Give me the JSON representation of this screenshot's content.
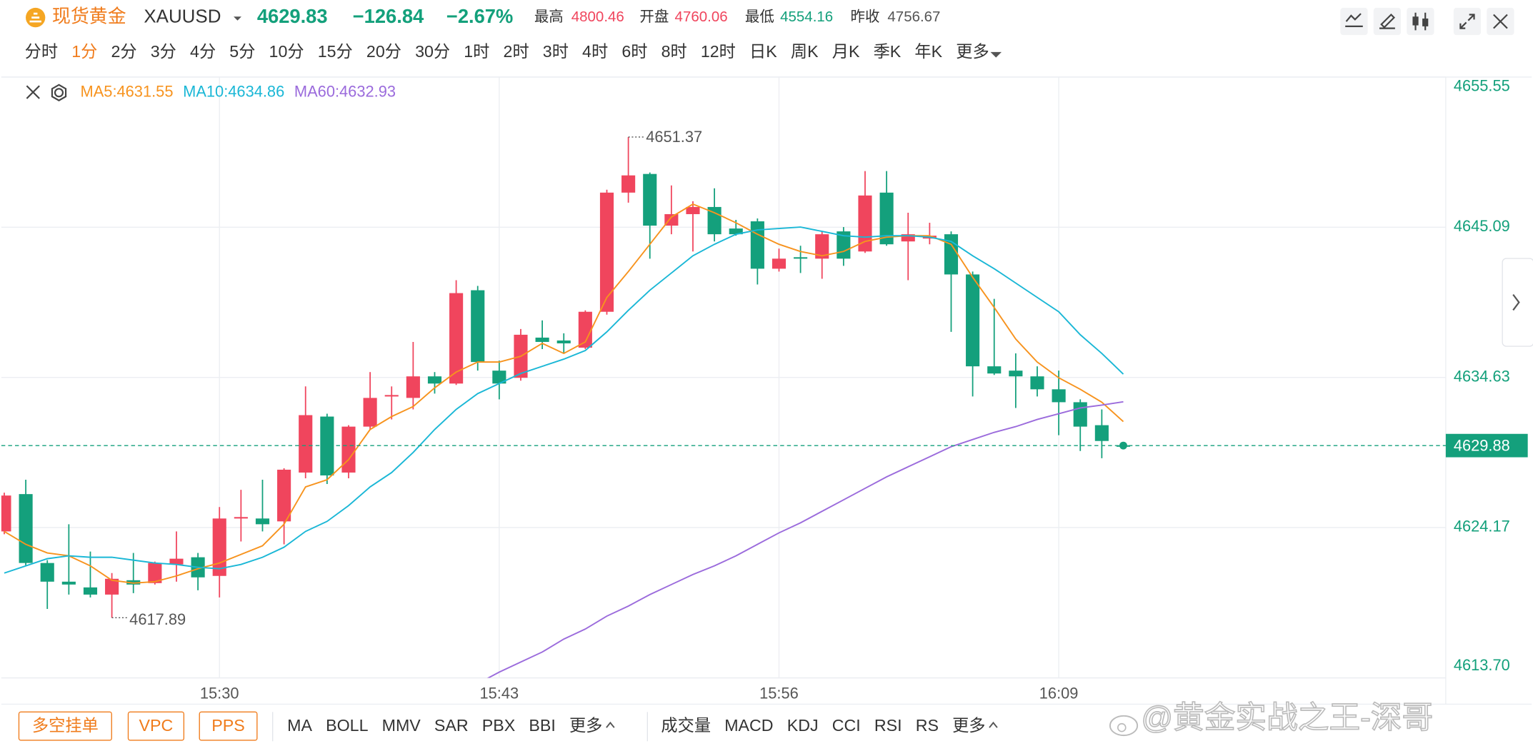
{
  "header": {
    "name": "现货黄金",
    "symbol": "XAUUSD",
    "price": "4629.83",
    "change": "−126.84",
    "change_pct": "−2.67%",
    "stats": [
      {
        "label": "最高",
        "value": "4800.46"
      },
      {
        "label": "开盘",
        "value": "4760.06"
      },
      {
        "label": "最低",
        "value": "4554.16"
      },
      {
        "label": "昨收",
        "value": "4756.67"
      }
    ]
  },
  "periods": [
    "分时",
    "1分",
    "2分",
    "3分",
    "4分",
    "5分",
    "10分",
    "15分",
    "20分",
    "30分",
    "1时",
    "2时",
    "3时",
    "4时",
    "6时",
    "8时",
    "12时",
    "日K",
    "周K",
    "月K",
    "季K",
    "年K",
    "更多"
  ],
  "buttons": [
    "多空挂单",
    "VPC",
    "PPS"
  ],
  "main_indicators": [
    "MA",
    "BOLL",
    "MMV",
    "SAR",
    "PBX",
    "BBI",
    "更多"
  ],
  "sub_indicators": [
    "成交量",
    "MACD",
    "KDJ",
    "CCI",
    "RSI",
    "RS",
    "更多"
  ],
  "watermark": "@黄金实战之王-深哥",
  "chart_data": {
    "type": "candlestick",
    "categories": [
      null,
      null,
      null,
      null,
      null,
      null,
      null,
      null,
      null,
      null,
      "15:30",
      null,
      null,
      null,
      null,
      null,
      null,
      null,
      null,
      null,
      null,
      null,
      null,
      "15:43",
      null,
      null,
      null,
      null,
      null,
      null,
      null,
      null,
      null,
      null,
      null,
      null,
      "15:56",
      null,
      null,
      null,
      null,
      null,
      null,
      null,
      null,
      null,
      null,
      null,
      null,
      "16:09",
      null,
      null,
      null
    ],
    "open": [
      4623.9,
      4626.5,
      4621.7,
      4620.4,
      4620.0,
      4619.5,
      4620.5,
      4620.3,
      4621.6,
      4622.1,
      4620.8,
      4624.8,
      4624.8,
      4624.6,
      4628.0,
      4631.9,
      4628.0,
      4631.2,
      4633.3,
      4633.2,
      4634.7,
      4634.2,
      4640.7,
      4635.1,
      4634.6,
      4637.4,
      4637.2,
      4636.7,
      4639.2,
      4647.5,
      4648.8,
      4645.2,
      4646.0,
      4646.5,
      4645.0,
      4645.5,
      4642.2,
      4643.0,
      4642.9,
      4644.8,
      4643.4,
      4647.5,
      4644.1,
      4644.3,
      4644.6,
      4641.8,
      4635.4,
      4635.1,
      4634.7,
      4633.8,
      4632.9,
      4631.3,
      4629.9
    ],
    "high": [
      4626.6,
      4627.5,
      4621.9,
      4624.4,
      4622.5,
      4621.0,
      4622.4,
      4621.8,
      4623.9,
      4622.4,
      4625.6,
      4626.8,
      4627.5,
      4628.3,
      4634.0,
      4632.1,
      4631.3,
      4635.0,
      4634.0,
      4637.1,
      4635.0,
      4641.4,
      4641.0,
      4635.8,
      4638.0,
      4638.6,
      4637.7,
      4639.3,
      4647.7,
      4651.37,
      4648.9,
      4648.0,
      4646.9,
      4647.8,
      4645.6,
      4645.7,
      4643.6,
      4643.8,
      4644.8,
      4645.1,
      4649.0,
      4649.0,
      4646.1,
      4645.4,
      4644.8,
      4642.0,
      4640.1,
      4636.3,
      4635.4,
      4635.1,
      4633.1,
      4632.4,
      4630.0
    ],
    "low": [
      4623.7,
      4621.5,
      4618.5,
      4619.5,
      4619.3,
      4617.89,
      4619.6,
      4620.2,
      4620.4,
      4619.8,
      4619.3,
      4623.2,
      4623.9,
      4623.0,
      4627.6,
      4627.2,
      4627.6,
      4631.0,
      4631.7,
      4632.4,
      4633.5,
      4634.1,
      4635.1,
      4633.1,
      4634.4,
      4636.6,
      4636.3,
      4636.6,
      4639.0,
      4646.8,
      4642.9,
      4644.6,
      4643.4,
      4644.1,
      4644.5,
      4641.1,
      4642.0,
      4641.9,
      4641.5,
      4642.4,
      4643.3,
      4643.8,
      4641.4,
      4643.9,
      4637.8,
      4633.3,
      4634.8,
      4632.5,
      4633.3,
      4630.6,
      4629.5,
      4629.0,
      4629.7
    ],
    "close": [
      4626.4,
      4621.7,
      4620.4,
      4620.2,
      4619.5,
      4620.6,
      4620.2,
      4621.7,
      4622.0,
      4620.7,
      4624.8,
      4624.9,
      4624.4,
      4628.2,
      4632.0,
      4627.8,
      4631.2,
      4633.2,
      4633.4,
      4634.7,
      4634.2,
      4640.5,
      4635.7,
      4634.2,
      4637.6,
      4637.1,
      4637.0,
      4639.2,
      4647.5,
      4648.7,
      4645.2,
      4646.0,
      4646.5,
      4644.6,
      4644.6,
      4642.2,
      4642.9,
      4642.9,
      4644.6,
      4642.9,
      4647.3,
      4643.9,
      4644.6,
      4644.5,
      4641.8,
      4635.4,
      4634.9,
      4634.7,
      4633.8,
      4632.9,
      4631.2,
      4630.2,
      4629.88
    ],
    "up_color": "#f0455d",
    "down_color": "#14a07c",
    "series": [
      {
        "name": "MA5:4631.55",
        "color": "#f7931e",
        "values": [
          4623.9,
          4623.0,
          4622.4,
          4622.2,
          4621.5,
          4620.5,
          4620.3,
          4620.4,
          4620.8,
          4621.3,
          4621.7,
          4622.3,
          4622.9,
          4624.4,
          4627.0,
          4627.5,
          4628.9,
          4631.0,
          4631.9,
          4632.6,
          4633.9,
          4635.0,
          4635.7,
          4635.7,
          4636.1,
          4637.0,
          4636.3,
          4637.1,
          4640.2,
          4642.0,
          4643.9,
          4645.8,
          4646.7,
          4646.1,
          4645.4,
          4644.6,
          4643.9,
          4643.4,
          4643.1,
          4643.4,
          4644.1,
          4644.4,
          4644.5,
          4644.5,
          4643.9,
          4641.6,
          4639.5,
          4637.3,
          4635.7,
          4634.6,
          4633.8,
          4632.9,
          4631.55
        ]
      },
      {
        "name": "MA10:4634.86",
        "color": "#1ab7d6",
        "values": [
          4621.0,
          4621.5,
          4622.0,
          4622.2,
          4622.1,
          4622.1,
          4621.9,
          4621.7,
          4621.6,
          4621.4,
          4621.3,
          4621.6,
          4622.1,
          4622.8,
          4623.9,
          4624.6,
          4625.7,
          4627.0,
          4628.0,
          4629.4,
          4631.0,
          4632.4,
          4633.5,
          4634.2,
          4634.9,
          4635.4,
          4635.9,
          4636.5,
          4637.8,
          4639.3,
          4640.7,
          4641.9,
          4643.1,
          4643.9,
          4644.6,
          4644.9,
          4645.0,
          4645.1,
          4644.8,
          4644.5,
          4644.4,
          4644.5,
          4644.5,
          4644.4,
          4644.1,
          4643.1,
          4642.2,
          4641.2,
          4640.2,
          4639.2,
          4637.6,
          4636.3,
          4634.86
        ]
      },
      {
        "name": "MA60:4632.93",
        "color": "#9b6bdc",
        "values": [
          null,
          null,
          null,
          null,
          null,
          null,
          null,
          null,
          null,
          null,
          null,
          null,
          null,
          null,
          null,
          null,
          null,
          null,
          null,
          null,
          null,
          null,
          4613.3,
          4614.1,
          4614.8,
          4615.5,
          4616.4,
          4617.1,
          4618.0,
          4618.7,
          4619.5,
          4620.2,
          4620.9,
          4621.5,
          4622.2,
          4623.0,
          4623.8,
          4624.5,
          4625.3,
          4626.1,
          4626.9,
          4627.7,
          4628.4,
          4629.1,
          4629.8,
          4630.3,
          4630.8,
          4631.2,
          4631.7,
          4632.1,
          4632.5,
          4632.7,
          4632.93
        ]
      }
    ],
    "ylim": [
      4613.7,
      4655.55
    ],
    "yticks": [
      {
        "value": 4613.7,
        "label": "4613.70"
      },
      4624.17,
      4634.63,
      4645.09,
      4655.55
    ],
    "grid": true
  }
}
